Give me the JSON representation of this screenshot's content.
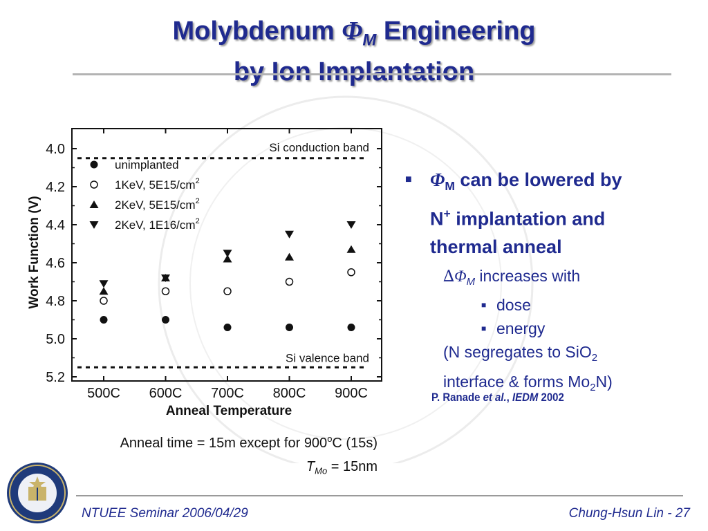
{
  "title": {
    "line1_prefix": "Molybdenum ",
    "phi": "Φ",
    "phi_sub": "M",
    "line1_suffix": " Engineering",
    "line2": "by Ion Implantation"
  },
  "colors": {
    "title": "#1f2a8f",
    "text": "#1f2a8f",
    "chart_ink": "#111111"
  },
  "chart_data": {
    "type": "scatter",
    "xlabel": "Anneal Temperature",
    "ylabel": "Work Function (V)",
    "categories": [
      "500C",
      "600C",
      "700C",
      "800C",
      "900C"
    ],
    "y_ticks": [
      "4.0",
      "4.2",
      "4.4",
      "4.6",
      "4.8",
      "5.0",
      "5.2"
    ],
    "ylim": [
      3.9,
      5.25
    ],
    "y_axis_inverted": true,
    "grid": false,
    "legend_position": "top-left",
    "reference_lines": [
      {
        "label": "Si conduction band",
        "y": 4.05
      },
      {
        "label": "Si valence band",
        "y": 5.15
      }
    ],
    "series": [
      {
        "name": "unimplanted",
        "marker": "filled-circle",
        "values": [
          4.9,
          4.9,
          4.94,
          4.94,
          4.94
        ]
      },
      {
        "name": "1KeV, 5E15/cm",
        "name_sup": "2",
        "marker": "open-circle",
        "values": [
          4.8,
          4.75,
          4.75,
          4.7,
          4.65
        ]
      },
      {
        "name": "2KeV, 5E15/cm",
        "name_sup": "2",
        "marker": "triangle-up",
        "values": [
          4.75,
          4.68,
          4.58,
          4.57,
          4.53
        ]
      },
      {
        "name": "2KeV, 1E16/cm",
        "name_sup": "2",
        "marker": "triangle-down",
        "values": [
          4.71,
          4.68,
          4.55,
          4.45,
          4.4
        ]
      }
    ]
  },
  "bullets": {
    "b1_phi": "Φ",
    "b1_phi_sub": "M",
    "b1_line1_rest": " can be lowered by",
    "b1_line2_prefix": "N",
    "b1_line2_sup": "+",
    "b1_line2_rest": " implantation and",
    "b1_line3": "thermal anneal",
    "b2_delta": "∆",
    "b2_phi": "Φ",
    "b2_phi_sub": "M",
    "b2_rest": " increases with",
    "b3": [
      "dose",
      "energy"
    ],
    "note_line1_prefix": "(N segregates to SiO",
    "note_line1_sub": "2",
    "note_line2_prefix": "interface & forms Mo",
    "note_line2_sub": "2",
    "note_line2_suffix": "N)"
  },
  "reference": {
    "authors": "P. Ranade ",
    "etal": "et al.",
    "comma": ", ",
    "venue": "IEDM",
    "year": " 2002"
  },
  "notes": {
    "anneal_prefix": "Anneal time = 15m except for 900",
    "anneal_sup": "o",
    "anneal_suffix": "C (15s)",
    "tmo_t": "T",
    "tmo_sub": "Mo",
    "tmo_rest": " = 15nm"
  },
  "footer": {
    "left": "NTUEE Seminar 2006/04/29",
    "right": "Chung-Hsun Lin - 27"
  },
  "icons": {
    "seal": "university-seal-icon",
    "bullet": "square-bullet-icon",
    "watermark": "watermark-seal-icon"
  }
}
